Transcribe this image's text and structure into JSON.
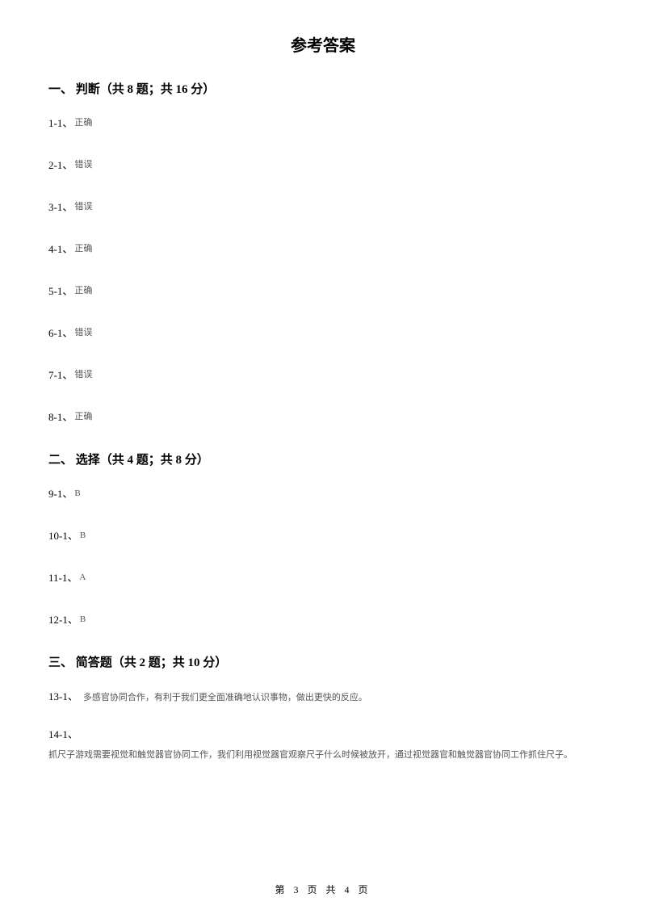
{
  "title": "参考答案",
  "section1": {
    "header": "一、 判断（共 8 题；共 16 分）",
    "items": [
      {
        "num": "1-1、",
        "val": "正确"
      },
      {
        "num": "2-1、",
        "val": "错误"
      },
      {
        "num": "3-1、",
        "val": "错误"
      },
      {
        "num": "4-1、",
        "val": "正确"
      },
      {
        "num": "5-1、",
        "val": "正确"
      },
      {
        "num": "6-1、",
        "val": "错误"
      },
      {
        "num": "7-1、",
        "val": "错误"
      },
      {
        "num": "8-1、",
        "val": "正确"
      }
    ]
  },
  "section2": {
    "header": "二、 选择（共 4 题；共 8 分）",
    "items": [
      {
        "num": "9-1、",
        "val": "B"
      },
      {
        "num": "10-1、",
        "val": "B"
      },
      {
        "num": "11-1、",
        "val": "A"
      },
      {
        "num": "12-1、",
        "val": "B"
      }
    ]
  },
  "section3": {
    "header": "三、 简答题（共 2 题；共 10 分）",
    "q13": {
      "num": "13-1、",
      "text": "多感官协同合作，有利于我们更全面准确地认识事物，做出更快的反应。"
    },
    "q14": {
      "num": "14-1、",
      "text": "抓尺子游戏需要视觉和触觉器官协同工作，我们利用视觉器官观察尺子什么时候被放开，通过视觉器官和触觉器官协同工作抓住尺子。"
    }
  },
  "footer": "第 3 页 共 4 页"
}
